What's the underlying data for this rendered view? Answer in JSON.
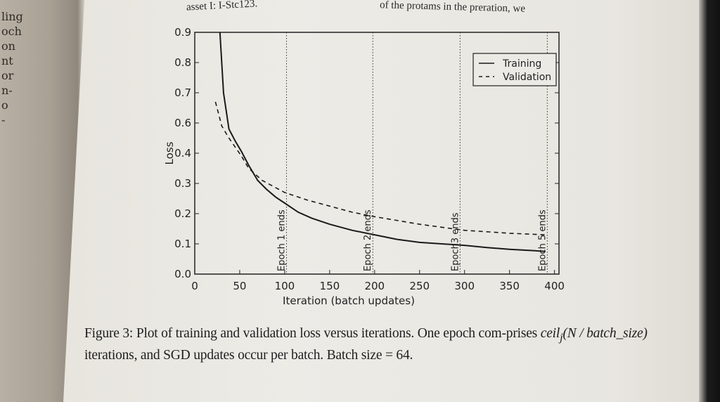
{
  "page": {
    "left_page_fragments": [
      "ling",
      "och",
      "on",
      "nt",
      "or",
      "n-",
      "o",
      "-"
    ],
    "top_text_left": "asset I: I-Stc123.",
    "top_text_right": "of the protams in the preration, we"
  },
  "chart_data": {
    "type": "line",
    "title": "",
    "xlabel": "Iteration (batch updates)",
    "ylabel": "Loss",
    "xlim": [
      0,
      405
    ],
    "x_ticks": [
      0,
      50,
      100,
      150,
      200,
      250,
      300,
      350,
      400
    ],
    "x_tick_labels": [
      "0",
      "50",
      "100",
      "150",
      "200",
      "250",
      "300",
      "350",
      "400"
    ],
    "y_tick_labels": [
      "0.0",
      "0.1",
      "0.2",
      "0.3",
      "0.4",
      "0.6",
      "0.7",
      "0.8",
      "0.9"
    ],
    "y_tick_values": [
      0.0,
      0.1,
      0.2,
      0.3,
      0.4,
      0.6,
      0.7,
      0.8,
      0.9
    ],
    "grid": false,
    "legend_position": "top-right",
    "series": [
      {
        "name": "Training",
        "style": "solid",
        "x": [
          28,
          32,
          38,
          45,
          52,
          60,
          70,
          80,
          90,
          100,
          115,
          130,
          150,
          175,
          200,
          225,
          250,
          275,
          300,
          325,
          350,
          375,
          390
        ],
        "y": [
          0.9,
          0.7,
          0.56,
          0.48,
          0.41,
          0.36,
          0.31,
          0.28,
          0.255,
          0.235,
          0.205,
          0.185,
          0.165,
          0.145,
          0.13,
          0.115,
          0.105,
          0.1,
          0.095,
          0.088,
          0.082,
          0.078,
          0.075
        ]
      },
      {
        "name": "Validation",
        "style": "dashed",
        "x": [
          23,
          30,
          38,
          45,
          52,
          60,
          75,
          100,
          125,
          150,
          175,
          200,
          250,
          300,
          350,
          390
        ],
        "y": [
          0.67,
          0.58,
          0.5,
          0.44,
          0.39,
          0.35,
          0.31,
          0.27,
          0.245,
          0.225,
          0.205,
          0.19,
          0.165,
          0.145,
          0.135,
          0.13
        ]
      }
    ],
    "annotations": [
      {
        "label": "Epoch 1 ends",
        "x": 102
      },
      {
        "label": "Epoch 2 ends",
        "x": 198
      },
      {
        "label": "Epoch3 ends",
        "x": 295
      },
      {
        "label": "Epoch 5 ends",
        "x": 392
      }
    ]
  },
  "caption": {
    "part1": "Figure 3: Plot of training and validation loss versus iterations. One epoch com-prises ",
    "math": "ceil",
    "sub": "j",
    "math2": "(N / batch_size)",
    "part2": " iterations, and SGD updates occur per batch. Batch size = 64."
  }
}
